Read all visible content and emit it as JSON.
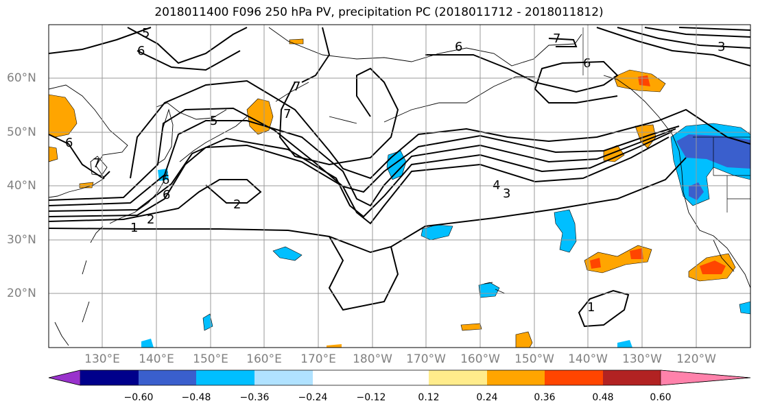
{
  "title": "2018011400 F096 250 hPa PV, precipitation PC (2018011712 - 2018011812)",
  "lat_labels": [
    "60°N",
    "50°N",
    "40°N",
    "30°N",
    "20°N"
  ],
  "lon_labels": [
    "130°E",
    "140°E",
    "150°E",
    "160°E",
    "170°E",
    "180°W",
    "170°W",
    "160°W",
    "150°W",
    "140°W",
    "130°W",
    "120°W"
  ],
  "colorbar": {
    "colors": [
      "#9932CC",
      "#00008B",
      "#3A5FCD",
      "#00BFFF",
      "#B0E2FF",
      "#FFFFFF",
      "#FFFFFF",
      "#FFEC8B",
      "#FFA500",
      "#FF4500",
      "#B22222",
      "#FF82AB"
    ],
    "ticks": [
      "−0.60",
      "−0.48",
      "−0.36",
      "−0.24",
      "−0.12",
      "0.12",
      "0.24",
      "0.36",
      "0.48",
      "0.60"
    ]
  },
  "contour_labels": [
    "5",
    "6",
    "6",
    "6",
    "7",
    "7",
    "7",
    "6",
    "5",
    "6",
    "7",
    "2",
    "2",
    "1",
    "6",
    "4",
    "3",
    "3",
    "1"
  ],
  "map_extent": {
    "lon_min": "124°E",
    "lon_max": "110°W",
    "lat_min": "10°N",
    "lat_max": "70°N"
  }
}
